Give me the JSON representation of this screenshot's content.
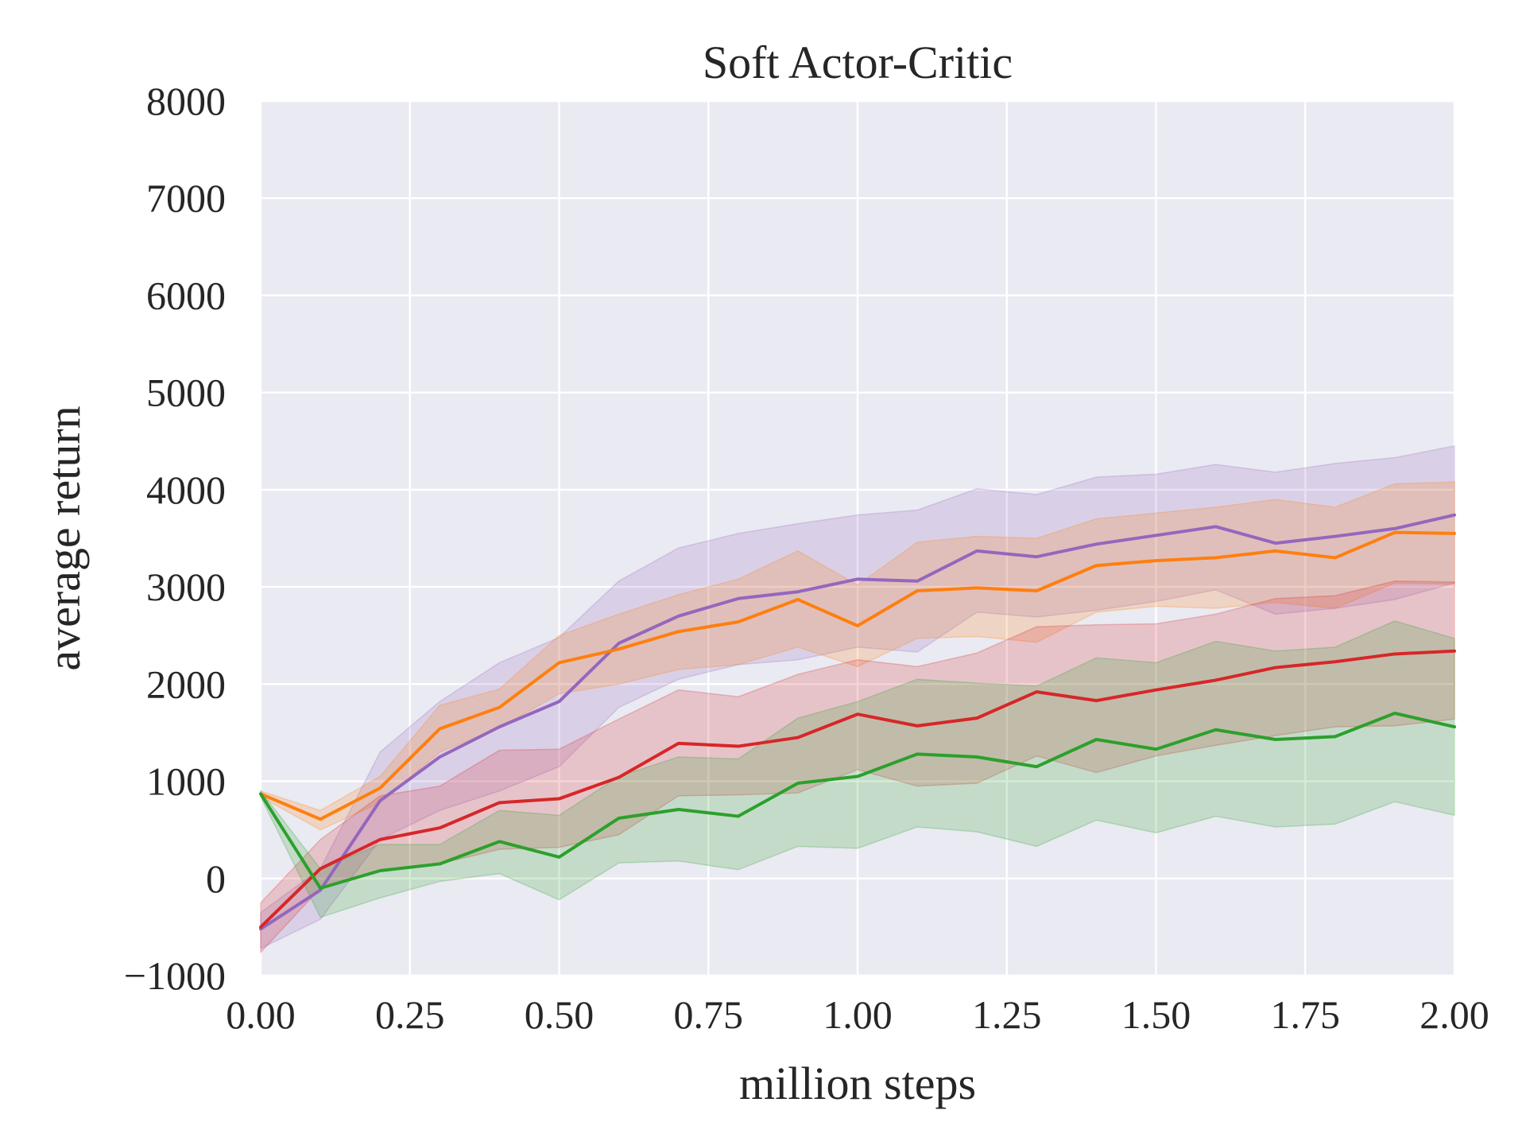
{
  "chart_data": {
    "type": "line",
    "title": "Soft Actor-Critic",
    "xlabel": "million steps",
    "ylabel": "average return",
    "xlim": [
      0,
      2.0
    ],
    "ylim": [
      -1000,
      8000
    ],
    "xticks": [
      "0.00",
      "0.25",
      "0.50",
      "0.75",
      "1.00",
      "1.25",
      "1.50",
      "1.75",
      "2.00"
    ],
    "xtick_values": [
      0,
      0.25,
      0.5,
      0.75,
      1.0,
      1.25,
      1.5,
      1.75,
      2.0
    ],
    "yticks": [
      "−1000",
      "0",
      "1000",
      "2000",
      "3000",
      "4000",
      "5000",
      "6000",
      "7000",
      "8000"
    ],
    "ytick_values": [
      -1000,
      0,
      1000,
      2000,
      3000,
      4000,
      5000,
      6000,
      7000,
      8000
    ],
    "grid": true,
    "background": "#eaeaf2",
    "x": [
      0,
      0.1,
      0.2,
      0.3,
      0.4,
      0.5,
      0.6,
      0.7,
      0.8,
      0.9,
      1.0,
      1.1,
      1.2,
      1.3,
      1.4,
      1.5,
      1.6,
      1.7,
      1.8,
      1.9,
      2.0
    ],
    "series": [
      {
        "color": "#9467bd",
        "values": [
          -520,
          -120,
          800,
          1250,
          1560,
          1820,
          2420,
          2700,
          2880,
          2950,
          3080,
          3060,
          3370,
          3310,
          3440,
          3530,
          3620,
          3450,
          3520,
          3600,
          3740
        ],
        "upper": [
          -350,
          100,
          1300,
          1820,
          2220,
          2480,
          3060,
          3400,
          3550,
          3650,
          3740,
          3790,
          4010,
          3950,
          4130,
          4160,
          4260,
          4180,
          4270,
          4330,
          4450
        ],
        "lower": [
          -720,
          -420,
          400,
          700,
          900,
          1150,
          1760,
          2050,
          2200,
          2250,
          2380,
          2330,
          2740,
          2690,
          2760,
          2850,
          2970,
          2720,
          2780,
          2870,
          3040
        ]
      },
      {
        "color": "#ff7f0e",
        "values": [
          870,
          610,
          930,
          1540,
          1760,
          2220,
          2360,
          2540,
          2640,
          2870,
          2600,
          2960,
          2990,
          2960,
          3220,
          3270,
          3300,
          3370,
          3300,
          3560,
          3550
        ],
        "upper": [
          900,
          700,
          1050,
          1780,
          1950,
          2500,
          2720,
          2920,
          3080,
          3370,
          3020,
          3460,
          3520,
          3500,
          3700,
          3760,
          3820,
          3900,
          3820,
          4060,
          4080
        ],
        "lower": [
          840,
          500,
          780,
          1300,
          1550,
          1900,
          2000,
          2150,
          2200,
          2380,
          2180,
          2470,
          2490,
          2430,
          2740,
          2800,
          2780,
          2840,
          2780,
          3040,
          3030
        ]
      },
      {
        "color": "#d62728",
        "values": [
          -500,
          100,
          400,
          520,
          780,
          820,
          1040,
          1390,
          1360,
          1450,
          1690,
          1570,
          1650,
          1920,
          1830,
          1940,
          2040,
          2170,
          2230,
          2310,
          2340
        ],
        "upper": [
          -250,
          400,
          850,
          950,
          1320,
          1330,
          1640,
          1940,
          1870,
          2100,
          2250,
          2180,
          2320,
          2590,
          2610,
          2620,
          2720,
          2880,
          2910,
          3060,
          3050
        ],
        "lower": [
          -760,
          -100,
          80,
          150,
          300,
          320,
          450,
          850,
          860,
          880,
          1120,
          950,
          980,
          1260,
          1090,
          1260,
          1370,
          1470,
          1560,
          1570,
          1640
        ]
      },
      {
        "color": "#2ca02c",
        "values": [
          870,
          -100,
          80,
          150,
          380,
          220,
          620,
          710,
          640,
          980,
          1050,
          1280,
          1250,
          1150,
          1430,
          1330,
          1530,
          1430,
          1460,
          1700,
          1560
        ],
        "upper": [
          900,
          100,
          350,
          350,
          700,
          650,
          1050,
          1250,
          1230,
          1650,
          1820,
          2050,
          2010,
          1980,
          2270,
          2220,
          2440,
          2340,
          2380,
          2650,
          2470
        ],
        "lower": [
          840,
          -400,
          -200,
          -30,
          50,
          -220,
          160,
          180,
          90,
          330,
          310,
          530,
          480,
          330,
          600,
          470,
          640,
          530,
          560,
          790,
          650
        ]
      }
    ]
  }
}
